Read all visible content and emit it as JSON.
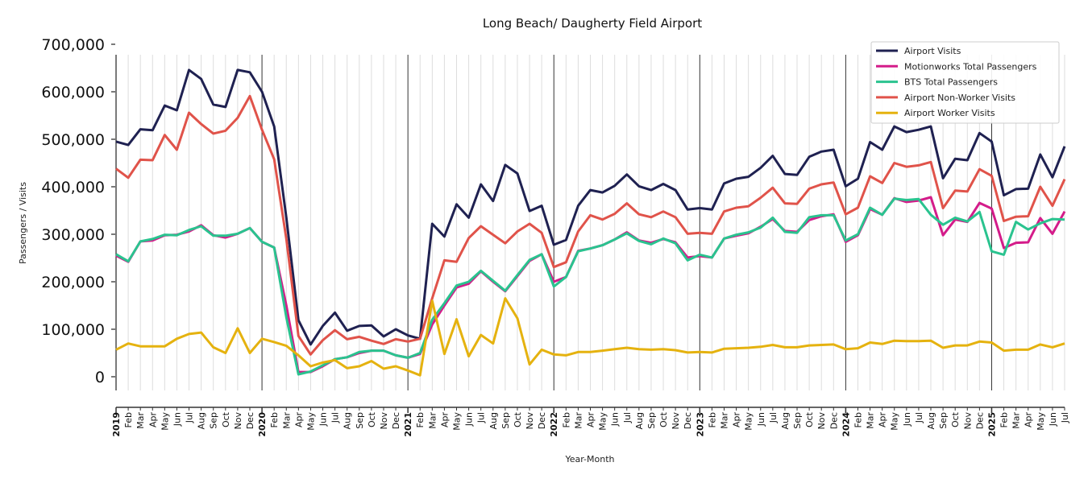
{
  "chart_data": {
    "type": "line",
    "title": "Long Beach/ Daugherty Field Airport",
    "xlabel": "Year-Month",
    "ylabel": "Passengers / Visits",
    "ylim": [
      -30000,
      700000
    ],
    "y_ticks": [
      0,
      100000,
      200000,
      300000,
      400000,
      500000,
      600000,
      700000
    ],
    "y_tick_labels": [
      "0",
      "100,000",
      "200,000",
      "300,000",
      "400,000",
      "500,000",
      "600,000",
      "700,000"
    ],
    "x_start": "2019-01",
    "x_end": "2025-07",
    "x_tick_labels": [
      "2019",
      "Feb",
      "Mar",
      "Apr",
      "May",
      "Jun",
      "Jul",
      "Aug",
      "Sep",
      "Oct",
      "Nov",
      "Dec",
      "2020",
      "Feb",
      "Mar",
      "Apr",
      "May",
      "Jun",
      "Jul",
      "Aug",
      "Sep",
      "Oct",
      "Nov",
      "Dec",
      "2021",
      "Feb",
      "Mar",
      "Apr",
      "May",
      "Jun",
      "Jul",
      "Aug",
      "Sep",
      "Oct",
      "Nov",
      "Dec",
      "2022",
      "Feb",
      "Mar",
      "Apr",
      "May",
      "Jun",
      "Jul",
      "Aug",
      "Sep",
      "Oct",
      "Nov",
      "Dec",
      "2023",
      "Feb",
      "Mar",
      "Apr",
      "May",
      "Jun",
      "Jul",
      "Aug",
      "Sep",
      "Oct",
      "Nov",
      "Dec",
      "2024",
      "Feb",
      "Mar",
      "Apr",
      "May",
      "Jun",
      "Jul",
      "Aug",
      "Sep",
      "Oct",
      "Nov",
      "Dec",
      "2025",
      "Feb",
      "Mar",
      "Apr",
      "May",
      "Jun",
      "Jul"
    ],
    "legend_position": "top-right",
    "grid": "vertical monthly lines; darker lines at year starts",
    "series": [
      {
        "name": "Airport Visits",
        "color": "#1f2151",
        "values": [
          495000,
          488000,
          521000,
          519000,
          571000,
          561000,
          646000,
          627000,
          573000,
          568000,
          646000,
          641000,
          600000,
          527000,
          335000,
          119000,
          68000,
          107000,
          135000,
          97000,
          107000,
          108000,
          85000,
          100000,
          87000,
          80000,
          322000,
          295000,
          363000,
          335000,
          405000,
          370000,
          446000,
          428000,
          349000,
          360000,
          278000,
          288000,
          360000,
          393000,
          388000,
          402000,
          426000,
          401000,
          393000,
          406000,
          393000,
          352000,
          355000,
          352000,
          407000,
          417000,
          421000,
          440000,
          465000,
          427000,
          425000,
          463000,
          474000,
          478000,
          401000,
          417000,
          494000,
          478000,
          527000,
          515000,
          520000,
          527000,
          418000,
          459000,
          456000,
          513000,
          495000,
          382000,
          395000,
          396000,
          468000,
          420000,
          485000
        ]
      },
      {
        "name": "Motionworks Total Passengers",
        "color": "#d41c8a",
        "values": [
          255000,
          242000,
          285000,
          287000,
          298000,
          299000,
          306000,
          319000,
          298000,
          293000,
          301000,
          313000,
          284000,
          272000,
          150000,
          10000,
          10000,
          22000,
          37000,
          41000,
          50000,
          55000,
          55000,
          45000,
          40000,
          48000,
          110000,
          150000,
          188000,
          196000,
          222000,
          200000,
          180000,
          212000,
          244000,
          258000,
          200000,
          210000,
          265000,
          270000,
          277000,
          289000,
          304000,
          287000,
          282000,
          290000,
          283000,
          251000,
          254000,
          251000,
          291000,
          297000,
          302000,
          316000,
          332000,
          307000,
          305000,
          330000,
          338000,
          342000,
          284000,
          298000,
          353000,
          341000,
          376000,
          368000,
          371000,
          378000,
          298000,
          331000,
          326000,
          366000,
          354000,
          271000,
          282000,
          283000,
          334000,
          301000,
          348000
        ]
      },
      {
        "name": "BTS Total Passengers",
        "color": "#2ac38f",
        "values": [
          258000,
          243000,
          285000,
          290000,
          299000,
          298000,
          309000,
          317000,
          297000,
          297000,
          301000,
          313000,
          284000,
          272000,
          125000,
          5000,
          11000,
          24000,
          37000,
          41000,
          52000,
          55000,
          55000,
          45000,
          40000,
          50000,
          120000,
          155000,
          192000,
          200000,
          223000,
          202000,
          181000,
          214000,
          246000,
          258000,
          190000,
          210000,
          264000,
          270000,
          277000,
          289000,
          302000,
          286000,
          279000,
          291000,
          281000,
          245000,
          257000,
          251000,
          291000,
          299000,
          304000,
          314000,
          335000,
          305000,
          303000,
          336000,
          340000,
          340000,
          287000,
          300000,
          356000,
          341000,
          375000,
          372000,
          374000,
          341000,
          320000,
          335000,
          327000,
          347000,
          264000,
          257000,
          326000,
          310000,
          323000,
          332000,
          331000
        ]
      },
      {
        "name": "Airport Non-Worker Visits",
        "color": "#e0534a",
        "values": [
          438000,
          419000,
          457000,
          456000,
          509000,
          478000,
          556000,
          532000,
          512000,
          518000,
          545000,
          591000,
          520000,
          458000,
          290000,
          86000,
          47000,
          77000,
          98000,
          79000,
          84000,
          76000,
          69000,
          79000,
          74000,
          80000,
          165000,
          245000,
          242000,
          292000,
          317000,
          299000,
          281000,
          306000,
          322000,
          303000,
          231000,
          241000,
          306000,
          340000,
          331000,
          343000,
          365000,
          342000,
          336000,
          348000,
          336000,
          301000,
          303000,
          301000,
          348000,
          356000,
          359000,
          377000,
          398000,
          365000,
          364000,
          396000,
          405000,
          409000,
          342000,
          356000,
          422000,
          408000,
          450000,
          442000,
          445000,
          452000,
          355000,
          392000,
          390000,
          437000,
          423000,
          328000,
          337000,
          338000,
          400000,
          360000,
          416000
        ]
      },
      {
        "name": "Airport Worker Visits",
        "color": "#e5b20f",
        "values": [
          57000,
          70000,
          64000,
          64000,
          64000,
          80000,
          90000,
          93000,
          62000,
          50000,
          102000,
          50000,
          80000,
          73000,
          65000,
          45000,
          22000,
          30000,
          35000,
          18000,
          22000,
          33000,
          17000,
          22000,
          13000,
          3000,
          160000,
          48000,
          121000,
          43000,
          88000,
          70000,
          165000,
          123000,
          26000,
          57000,
          47000,
          45000,
          52000,
          52000,
          55000,
          58000,
          61000,
          58000,
          57000,
          58000,
          56000,
          51000,
          52000,
          51000,
          59000,
          60000,
          61000,
          63000,
          67000,
          62000,
          62000,
          66000,
          67000,
          68000,
          58000,
          60000,
          72000,
          69000,
          76000,
          75000,
          75000,
          76000,
          61000,
          66000,
          66000,
          74000,
          72000,
          55000,
          57000,
          57000,
          68000,
          62000,
          70000
        ]
      }
    ]
  }
}
